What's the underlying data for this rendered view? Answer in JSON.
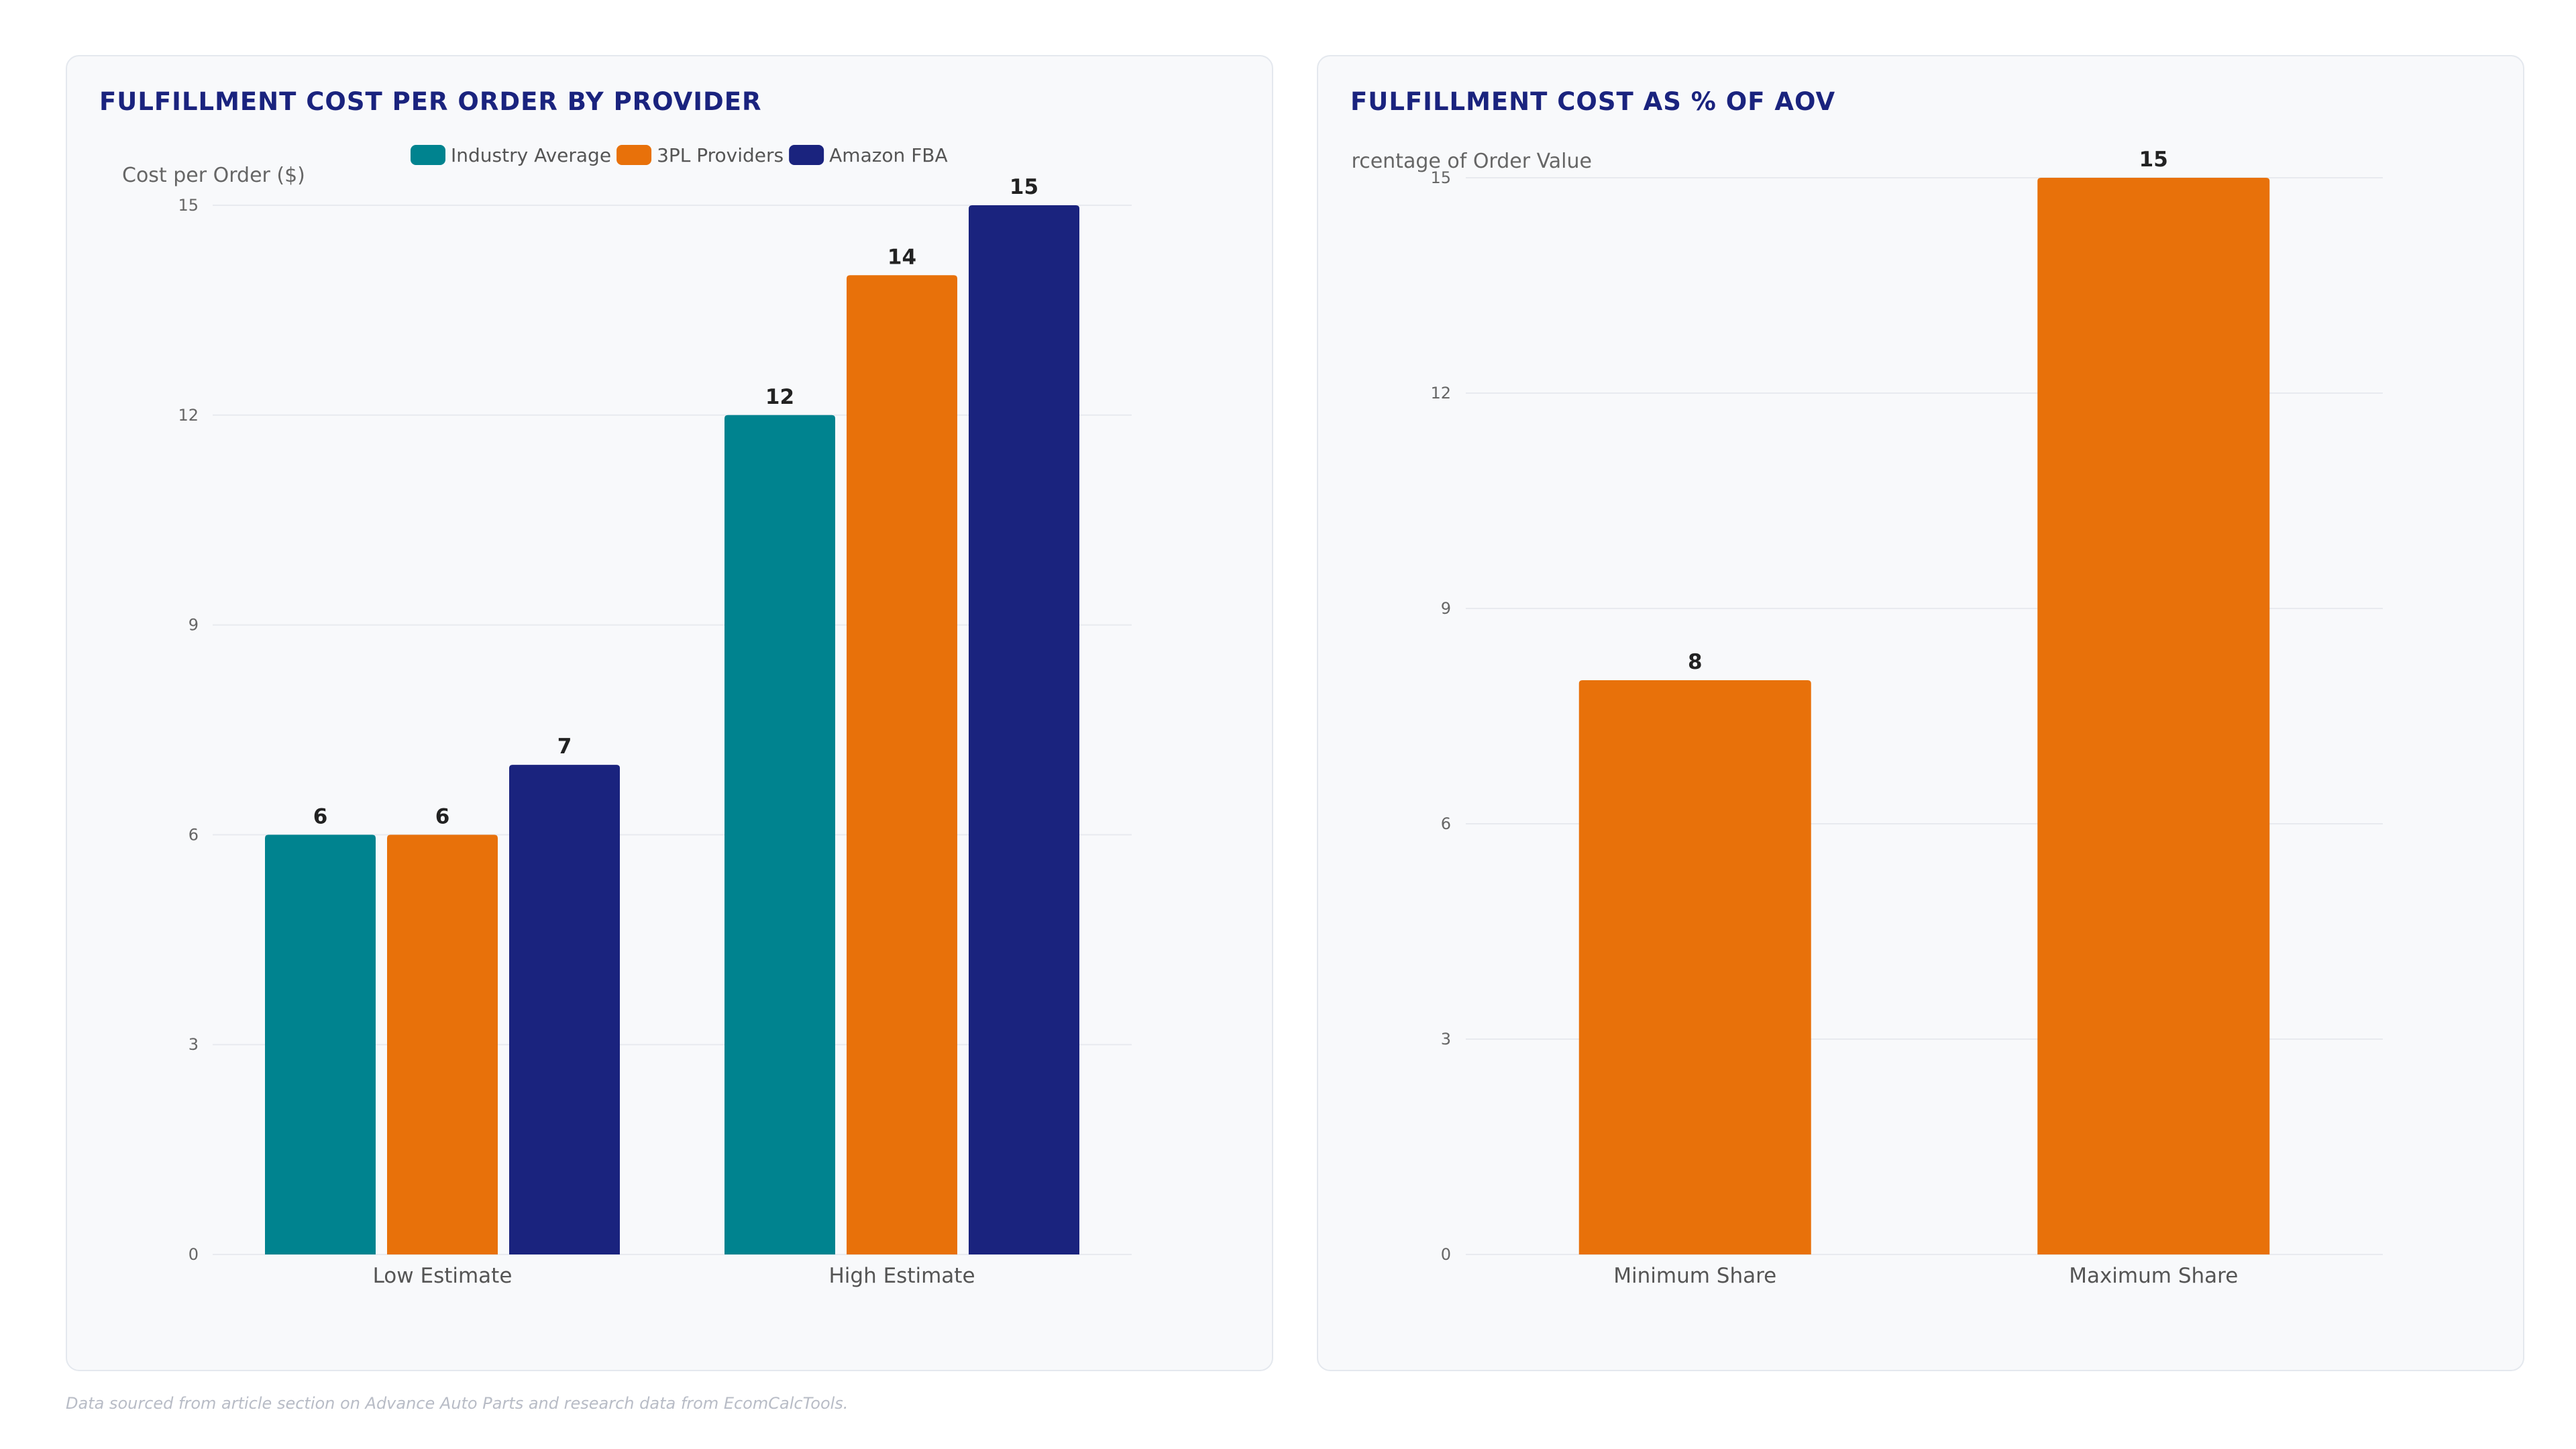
{
  "colors": {
    "teal": "#00838f",
    "orange": "#e8710a",
    "navy": "#1a237e",
    "grid": "#e8eaef"
  },
  "chart_data": [
    {
      "type": "bar",
      "title": "FULFILLMENT COST PER ORDER BY PROVIDER",
      "ylabel": "Cost per Order ($)",
      "xlabel": "",
      "categories": [
        "Low Estimate",
        "High Estimate"
      ],
      "series": [
        {
          "name": "Industry Average",
          "color": "#00838f",
          "values": [
            6,
            12
          ]
        },
        {
          "name": "3PL Providers",
          "color": "#e8710a",
          "values": [
            6,
            14
          ]
        },
        {
          "name": "Amazon FBA",
          "color": "#1a237e",
          "values": [
            7,
            15
          ]
        }
      ],
      "ylim": [
        0,
        15
      ],
      "yticks": [
        0,
        3,
        6,
        9,
        12,
        15
      ],
      "legend": "top-center",
      "grid": true
    },
    {
      "type": "bar",
      "title": "FULFILLMENT COST AS % OF AOV",
      "ylabel": "Percentage of Order Value",
      "xlabel": "",
      "categories": [
        "Minimum Share",
        "Maximum Share"
      ],
      "series": [
        {
          "color": "#e8710a",
          "values": [
            8,
            15
          ]
        }
      ],
      "ylim": [
        0,
        15
      ],
      "yticks": [
        0,
        3,
        6,
        9,
        12,
        15
      ],
      "legend": "none",
      "grid": true
    }
  ],
  "footnote": "Data sourced from article section on Advance Auto Parts and research data from EcomCalcTools."
}
